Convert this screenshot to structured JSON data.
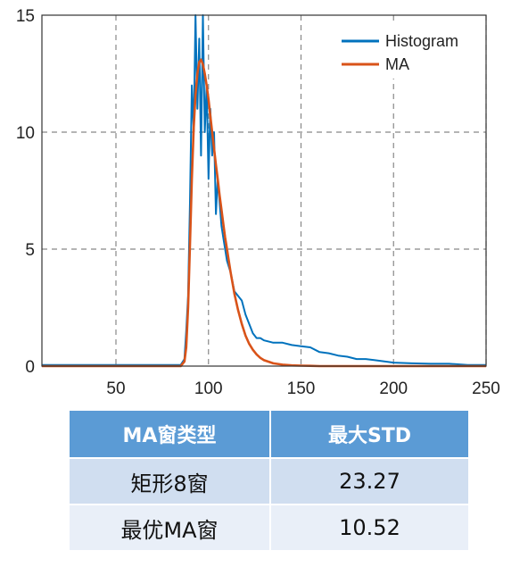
{
  "chart_data": {
    "type": "line",
    "xlim": [
      10,
      250
    ],
    "ylim": [
      0,
      15
    ],
    "xticks": [
      "50",
      "100",
      "150",
      "200",
      "250"
    ],
    "yticks": [
      "0",
      "5",
      "10",
      "15"
    ],
    "grid": "on",
    "legend_position": "top-right",
    "series": [
      {
        "name": "Histogram",
        "color": "#0072bd",
        "x": [
          10,
          20,
          30,
          40,
          50,
          60,
          70,
          80,
          85,
          87,
          88,
          89,
          90,
          91,
          92,
          93,
          94,
          95,
          96,
          97,
          98,
          99,
          100,
          101,
          102,
          103,
          104,
          105,
          106,
          107,
          108,
          109,
          110,
          112,
          114,
          116,
          118,
          120,
          122,
          124,
          126,
          128,
          130,
          135,
          140,
          145,
          150,
          155,
          160,
          165,
          170,
          175,
          180,
          185,
          190,
          195,
          200,
          210,
          220,
          230,
          240,
          250
        ],
        "y": [
          0.05,
          0.05,
          0.05,
          0.05,
          0.05,
          0.05,
          0.05,
          0.05,
          0.05,
          0.3,
          1.5,
          3,
          7,
          12,
          10,
          15,
          11,
          14,
          9,
          15,
          10,
          12,
          8,
          11,
          9,
          10,
          6.5,
          8,
          7,
          6,
          5.5,
          5,
          4.5,
          4,
          3.2,
          3,
          2.8,
          2.2,
          1.8,
          1.4,
          1.2,
          1.2,
          1.1,
          1.0,
          1.0,
          0.9,
          0.85,
          0.8,
          0.6,
          0.55,
          0.45,
          0.4,
          0.3,
          0.3,
          0.25,
          0.2,
          0.15,
          0.12,
          0.1,
          0.1,
          0.05,
          0.05
        ]
      },
      {
        "name": "MA",
        "color": "#d95319",
        "x": [
          10,
          20,
          30,
          40,
          50,
          60,
          70,
          80,
          85,
          87,
          88,
          89,
          90,
          91,
          92,
          93,
          94,
          95,
          96,
          97,
          98,
          99,
          100,
          101,
          102,
          103,
          104,
          105,
          106,
          107,
          108,
          109,
          110,
          112,
          114,
          116,
          118,
          120,
          122,
          124,
          126,
          128,
          130,
          135,
          140,
          145,
          150,
          155,
          160,
          165,
          170,
          175,
          180,
          185,
          190,
          195,
          200,
          210,
          220,
          230,
          240,
          250
        ],
        "y": [
          0,
          0,
          0,
          0,
          0,
          0,
          0,
          0,
          0,
          0.2,
          0.8,
          2.5,
          5.2,
          8,
          10.2,
          11.6,
          12.5,
          13,
          13.1,
          12.9,
          12.5,
          12,
          11.4,
          10.7,
          10,
          9.3,
          8.6,
          8,
          7.3,
          6.7,
          6.1,
          5.5,
          5,
          4,
          3.1,
          2.4,
          1.8,
          1.3,
          0.95,
          0.7,
          0.5,
          0.35,
          0.25,
          0.12,
          0.06,
          0.03,
          0.02,
          0.01,
          0,
          0,
          0,
          0,
          0,
          0,
          0,
          0,
          0,
          0,
          0,
          0,
          0,
          0
        ]
      }
    ]
  },
  "table": {
    "headers": [
      "MA窗类型",
      "最大STD"
    ],
    "rows": [
      [
        "矩形8窗",
        "23.27"
      ],
      [
        "最优MA窗",
        "10.52"
      ]
    ],
    "header_color": "#5b9bd5",
    "row_colors": [
      "#d0def0",
      "#e9eff8"
    ]
  }
}
